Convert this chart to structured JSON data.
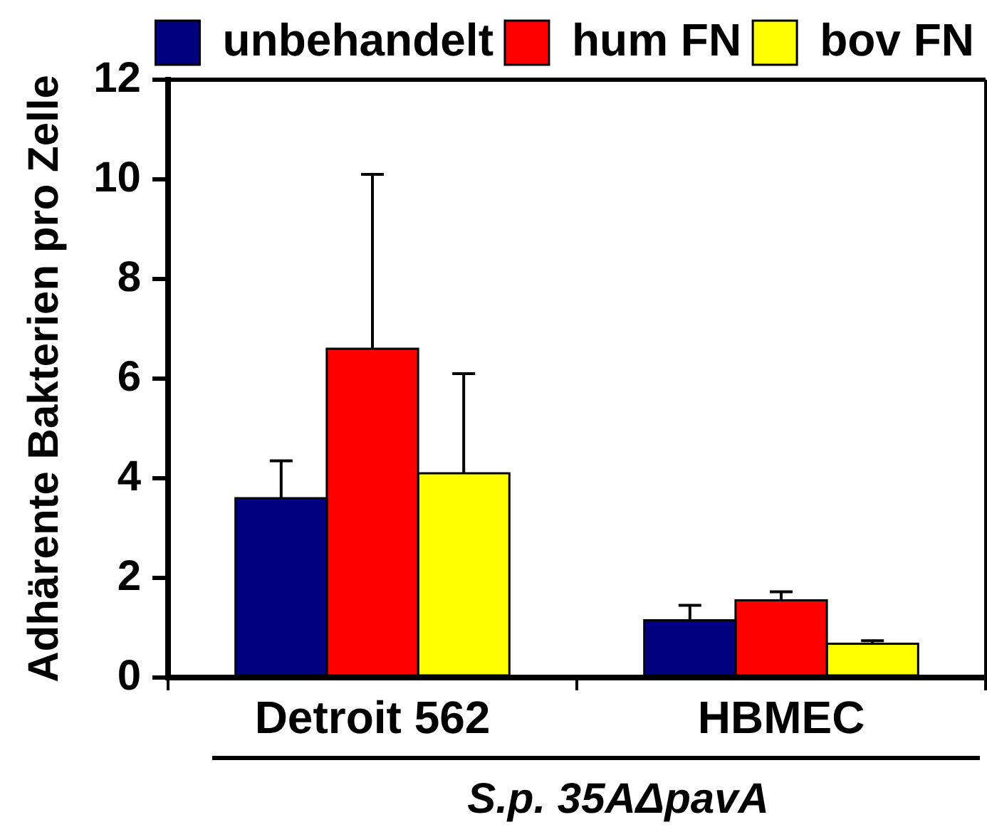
{
  "chart_data": {
    "type": "bar",
    "ylabel": "Adhärente Bakterien pro Zelle",
    "xlabel": "S.p. 35AΔpavA",
    "categories": [
      "Detroit 562",
      "HBMEC"
    ],
    "series": [
      {
        "name": "unbehandelt",
        "color": "#000080",
        "values": [
          3.6,
          1.15
        ],
        "errors": [
          0.75,
          0.3
        ]
      },
      {
        "name": "hum FN",
        "color": "#ff0000",
        "values": [
          6.6,
          1.55
        ],
        "errors": [
          3.5,
          0.17
        ]
      },
      {
        "name": "bov FN",
        "color": "#ffff00",
        "values": [
          4.1,
          0.68
        ],
        "errors": [
          2.0,
          0.06
        ]
      }
    ],
    "ylim": [
      0,
      12
    ],
    "yticks": [
      0,
      2,
      4,
      6,
      8,
      10,
      12
    ],
    "grid": false,
    "legend": "top"
  }
}
